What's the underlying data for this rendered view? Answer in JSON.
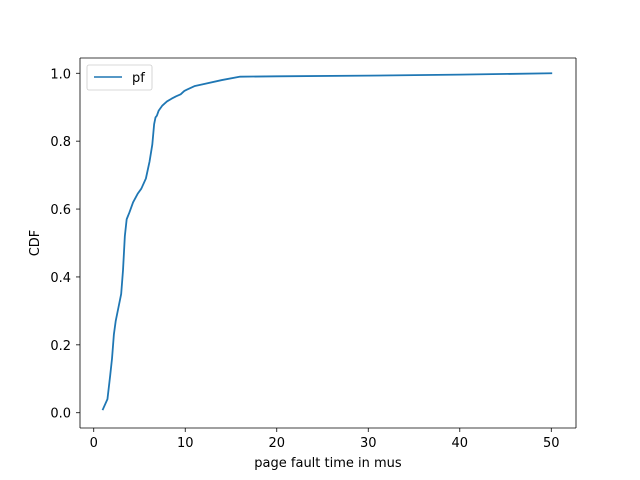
{
  "chart_data": {
    "type": "line",
    "title": "",
    "xlabel": "page fault time in mus",
    "ylabel": "CDF",
    "xlim": [
      -1.5,
      52.7
    ],
    "ylim": [
      -0.045,
      1.045
    ],
    "xticks": [
      0,
      10,
      20,
      30,
      40,
      50
    ],
    "yticks": [
      0.0,
      0.2,
      0.4,
      0.6,
      0.8,
      1.0
    ],
    "xtick_labels": [
      "0",
      "10",
      "20",
      "30",
      "40",
      "50"
    ],
    "ytick_labels": [
      "0.0",
      "0.2",
      "0.4",
      "0.6",
      "0.8",
      "1.0"
    ],
    "grid": false,
    "legend_position": "top-left",
    "series": [
      {
        "name": "pf",
        "color": "#1f77b4",
        "x": [
          1.0,
          1.5,
          1.8,
          2.0,
          2.2,
          2.4,
          2.7,
          3.0,
          3.2,
          3.4,
          3.6,
          3.9,
          4.3,
          4.8,
          5.2,
          5.7,
          6.1,
          6.4,
          6.6,
          6.75,
          6.9,
          7.1,
          7.5,
          8.0,
          8.5,
          9.0,
          9.5,
          9.9,
          10.2,
          11.0,
          12.0,
          14.0,
          16.0,
          20.0,
          30.0,
          40.0,
          50.0
        ],
        "y": [
          0.01,
          0.04,
          0.11,
          0.16,
          0.23,
          0.27,
          0.31,
          0.35,
          0.42,
          0.52,
          0.57,
          0.59,
          0.62,
          0.645,
          0.66,
          0.69,
          0.74,
          0.79,
          0.85,
          0.87,
          0.875,
          0.89,
          0.905,
          0.917,
          0.925,
          0.932,
          0.938,
          0.948,
          0.952,
          0.962,
          0.968,
          0.98,
          0.99,
          0.991,
          0.993,
          0.996,
          1.0
        ]
      }
    ]
  }
}
